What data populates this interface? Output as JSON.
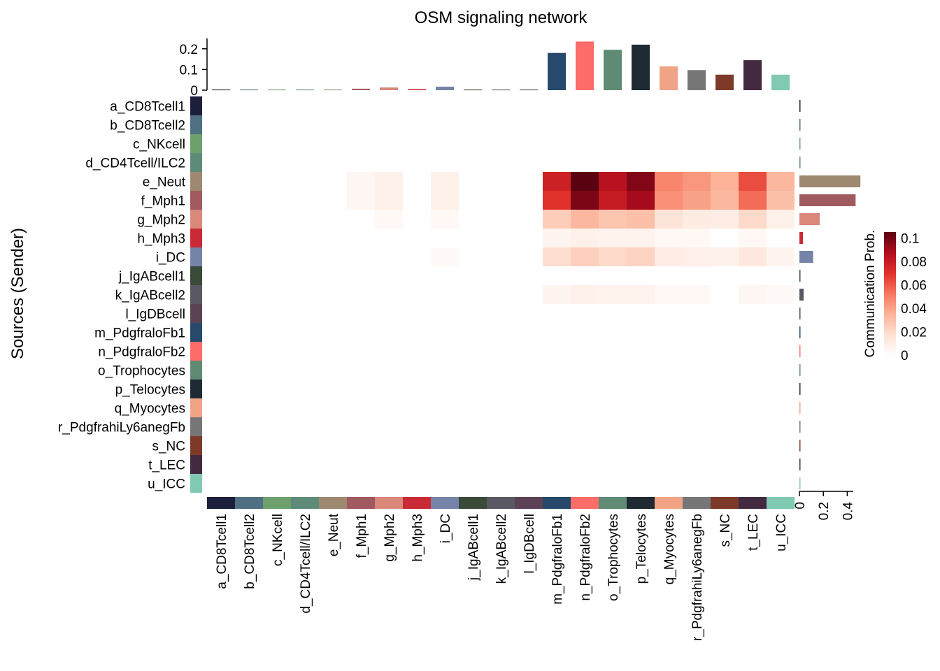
{
  "chart_data": {
    "type": "heatmap",
    "title": "OSM signaling network",
    "ylabel": "Sources (Sender)",
    "legend_title": "Communication Prob.",
    "legend_ticks": [
      "0",
      "0.02",
      "0.04",
      "0.06",
      "0.08",
      "0.1"
    ],
    "value_range": [
      0,
      0.105
    ],
    "colorscale": [
      "#ffffff",
      "#fde0d2",
      "#fcb398",
      "#f6765f",
      "#e0312b",
      "#b10d1e",
      "#5a0210"
    ],
    "top_axis_ticks": [
      "0",
      "0.1",
      "0.2"
    ],
    "top_axis_range": [
      0,
      0.25
    ],
    "right_axis_ticks": [
      "0",
      "0.2",
      "0.4"
    ],
    "right_axis_range": [
      0,
      0.55
    ],
    "cell_groups": [
      {
        "label": "a_CD8Tcell1",
        "color": "#1c1f3c"
      },
      {
        "label": "b_CD8Tcell2",
        "color": "#4f6f82"
      },
      {
        "label": "c_NKcell",
        "color": "#6da06c"
      },
      {
        "label": "d_CD4Tcell/ILC2",
        "color": "#5e8b78"
      },
      {
        "label": "e_Neut",
        "color": "#9e8870"
      },
      {
        "label": "f_Mph1",
        "color": "#a05a5f"
      },
      {
        "label": "g_Mph2",
        "color": "#d9887a"
      },
      {
        "label": "h_Mph3",
        "color": "#c92a35"
      },
      {
        "label": "i_DC",
        "color": "#7683a8"
      },
      {
        "label": "j_IgABcell1",
        "color": "#3a4a39"
      },
      {
        "label": "k_IgABcell2",
        "color": "#5a5862"
      },
      {
        "label": "l_IgDBcell",
        "color": "#5c4255"
      },
      {
        "label": "m_PdgfraloFb1",
        "color": "#274a6c"
      },
      {
        "label": "n_PdgfraloFb2",
        "color": "#fc6c68"
      },
      {
        "label": "o_Trophocytes",
        "color": "#5f8a74"
      },
      {
        "label": "p_Telocytes",
        "color": "#202a33"
      },
      {
        "label": "q_Myocytes",
        "color": "#f1a385"
      },
      {
        "label": "r_PdgfrahiLy6anegFb",
        "color": "#767676"
      },
      {
        "label": "s_NC",
        "color": "#7d3a29"
      },
      {
        "label": "t_LEC",
        "color": "#432a40"
      },
      {
        "label": "u_ICC",
        "color": "#80c9b2"
      }
    ],
    "matrix_note": "rows = senders, columns = receivers",
    "matrix": [
      [
        0,
        0,
        0,
        0,
        0,
        0,
        0,
        0,
        0,
        0,
        0,
        0,
        0,
        0,
        0,
        0,
        0,
        0,
        0,
        0,
        0
      ],
      [
        0,
        0,
        0,
        0,
        0,
        0,
        0,
        0,
        0,
        0,
        0,
        0,
        0,
        0,
        0,
        0,
        0,
        0,
        0,
        0,
        0
      ],
      [
        0,
        0,
        0,
        0,
        0,
        0,
        0,
        0,
        0,
        0,
        0,
        0,
        0,
        0,
        0,
        0,
        0,
        0,
        0,
        0,
        0
      ],
      [
        0,
        0,
        0,
        0,
        0,
        0,
        0,
        0,
        0,
        0,
        0,
        0,
        0,
        0,
        0,
        0,
        0,
        0,
        0,
        0,
        0
      ],
      [
        0,
        0,
        0,
        0,
        0,
        0.005,
        0.008,
        0,
        0.008,
        0,
        0,
        0,
        0.078,
        0.105,
        0.085,
        0.097,
        0.048,
        0.043,
        0.035,
        0.063,
        0.033
      ],
      [
        0,
        0,
        0,
        0,
        0,
        0.005,
        0.008,
        0,
        0.008,
        0,
        0,
        0,
        0.07,
        0.098,
        0.08,
        0.09,
        0.045,
        0.04,
        0.033,
        0.055,
        0.03
      ],
      [
        0,
        0,
        0,
        0,
        0,
        0,
        0.004,
        0,
        0.004,
        0,
        0,
        0,
        0.025,
        0.033,
        0.028,
        0.03,
        0.015,
        0.011,
        0.01,
        0.02,
        0.008
      ],
      [
        0,
        0,
        0,
        0,
        0,
        0,
        0,
        0,
        0,
        0,
        0,
        0,
        0.006,
        0.008,
        0.007,
        0.007,
        0.004,
        0.004,
        0,
        0.004,
        0
      ],
      [
        0,
        0,
        0,
        0,
        0,
        0,
        0,
        0,
        0.003,
        0,
        0,
        0,
        0.018,
        0.024,
        0.02,
        0.022,
        0.01,
        0.009,
        0.008,
        0.013,
        0.006
      ],
      [
        0,
        0,
        0,
        0,
        0,
        0,
        0,
        0,
        0,
        0,
        0,
        0,
        0,
        0,
        0,
        0,
        0,
        0,
        0,
        0,
        0
      ],
      [
        0,
        0,
        0,
        0,
        0,
        0,
        0,
        0,
        0,
        0,
        0,
        0,
        0.006,
        0.008,
        0.007,
        0.007,
        0.004,
        0.004,
        0,
        0.005,
        0.003
      ],
      [
        0,
        0,
        0,
        0,
        0,
        0,
        0,
        0,
        0,
        0,
        0,
        0,
        0,
        0,
        0,
        0,
        0,
        0,
        0,
        0,
        0
      ],
      [
        0,
        0,
        0,
        0,
        0,
        0,
        0,
        0,
        0,
        0,
        0,
        0,
        0,
        0,
        0,
        0,
        0,
        0,
        0,
        0,
        0
      ],
      [
        0,
        0,
        0,
        0,
        0,
        0,
        0,
        0,
        0,
        0,
        0,
        0,
        0,
        0,
        0,
        0,
        0,
        0,
        0,
        0,
        0
      ],
      [
        0,
        0,
        0,
        0,
        0,
        0,
        0,
        0,
        0,
        0,
        0,
        0,
        0,
        0,
        0,
        0,
        0,
        0,
        0,
        0,
        0
      ],
      [
        0,
        0,
        0,
        0,
        0,
        0,
        0,
        0,
        0,
        0,
        0,
        0,
        0,
        0,
        0,
        0,
        0,
        0,
        0,
        0,
        0
      ],
      [
        0,
        0,
        0,
        0,
        0,
        0,
        0,
        0,
        0,
        0,
        0,
        0,
        0,
        0,
        0,
        0,
        0,
        0,
        0,
        0,
        0
      ],
      [
        0,
        0,
        0,
        0,
        0,
        0,
        0,
        0,
        0,
        0,
        0,
        0,
        0,
        0,
        0,
        0,
        0,
        0,
        0,
        0,
        0
      ],
      [
        0,
        0,
        0,
        0,
        0,
        0,
        0,
        0,
        0,
        0,
        0,
        0,
        0,
        0,
        0,
        0,
        0,
        0,
        0,
        0,
        0
      ],
      [
        0,
        0,
        0,
        0,
        0,
        0,
        0,
        0,
        0,
        0,
        0,
        0,
        0,
        0,
        0,
        0,
        0,
        0,
        0,
        0,
        0
      ],
      [
        0,
        0,
        0,
        0,
        0,
        0,
        0,
        0,
        0,
        0,
        0,
        0,
        0,
        0,
        0,
        0,
        0,
        0,
        0,
        0,
        0
      ]
    ],
    "incoming_totals": [
      0.003,
      0.003,
      0.003,
      0.003,
      0.003,
      0.007,
      0.013,
      0.005,
      0.017,
      0.003,
      0.003,
      0.003,
      0.18,
      0.235,
      0.195,
      0.22,
      0.115,
      0.097,
      0.075,
      0.145,
      0.075
    ],
    "outgoing_totals": [
      0.003,
      0.003,
      0.003,
      0.003,
      0.51,
      0.47,
      0.17,
      0.03,
      0.115,
      0.003,
      0.035,
      0.003,
      0.003,
      0.003,
      0.003,
      0.003,
      0.003,
      0.003,
      0.003,
      0.003,
      0.003
    ]
  }
}
